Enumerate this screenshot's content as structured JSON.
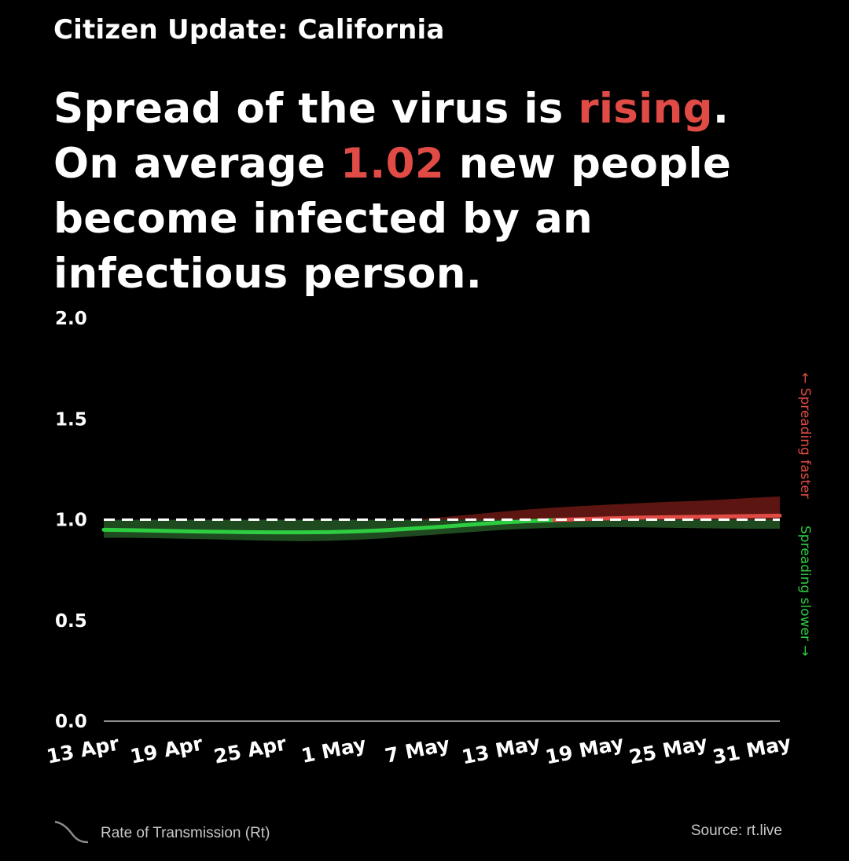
{
  "header": {
    "eyebrow": "Citizen Update: California",
    "headline": {
      "part1": "Spread of the virus is ",
      "highlight1": "rising",
      "part2": ". On average ",
      "highlight2": "1.02",
      "part3": " new people become infected by an infectious person."
    }
  },
  "footer": {
    "legend_label": "Rate of Transmission (Rt)",
    "legend_icon": "curve-line-icon",
    "source": "Source: rt.live"
  },
  "colors": {
    "background": "#000000",
    "text": "#ffffff",
    "rising": "#e04b46",
    "falling": "#2ecc40",
    "band_green": "#1f4a1f",
    "band_red": "#5c1510"
  },
  "chart_data": {
    "type": "line",
    "title": "",
    "xlabel": "",
    "ylabel": "",
    "ylim": [
      0,
      2
    ],
    "yticks": [
      "0.0",
      "0.5",
      "1.0",
      "1.5",
      "2.0"
    ],
    "xticks": [
      "13 Apr",
      "19 Apr",
      "25 Apr",
      "1 May",
      "7 May",
      "13 May",
      "19 May",
      "25 May",
      "31 May"
    ],
    "threshold": 1.0,
    "side_labels": {
      "upper": "← Spreading faster",
      "lower": "Spreading slower →"
    },
    "x": [
      "13 Apr",
      "15 Apr",
      "17 Apr",
      "19 Apr",
      "21 Apr",
      "23 Apr",
      "25 Apr",
      "27 Apr",
      "29 Apr",
      "1 May",
      "3 May",
      "5 May",
      "7 May",
      "9 May",
      "11 May",
      "13 May",
      "15 May",
      "17 May",
      "19 May",
      "21 May",
      "23 May",
      "25 May",
      "27 May",
      "29 May",
      "31 May"
    ],
    "series": [
      {
        "rt": [
          0.95,
          0.948,
          0.945,
          0.942,
          0.94,
          0.938,
          0.937,
          0.937,
          0.938,
          0.942,
          0.948,
          0.956,
          0.965,
          0.975,
          0.985,
          0.992,
          0.998,
          1.003,
          1.007,
          1.01,
          1.012,
          1.014,
          1.016,
          1.018,
          1.02
        ],
        "upper": [
          0.99,
          0.985,
          0.98,
          0.975,
          0.972,
          0.97,
          0.968,
          0.969,
          0.972,
          0.978,
          0.988,
          1.0,
          1.012,
          1.025,
          1.038,
          1.05,
          1.06,
          1.068,
          1.075,
          1.082,
          1.088,
          1.093,
          1.1,
          1.108,
          1.115
        ],
        "lower": [
          0.91,
          0.91,
          0.908,
          0.905,
          0.902,
          0.898,
          0.895,
          0.893,
          0.895,
          0.9,
          0.908,
          0.918,
          0.928,
          0.938,
          0.948,
          0.955,
          0.96,
          0.962,
          0.963,
          0.962,
          0.96,
          0.958,
          0.956,
          0.955,
          0.955
        ]
      }
    ]
  }
}
